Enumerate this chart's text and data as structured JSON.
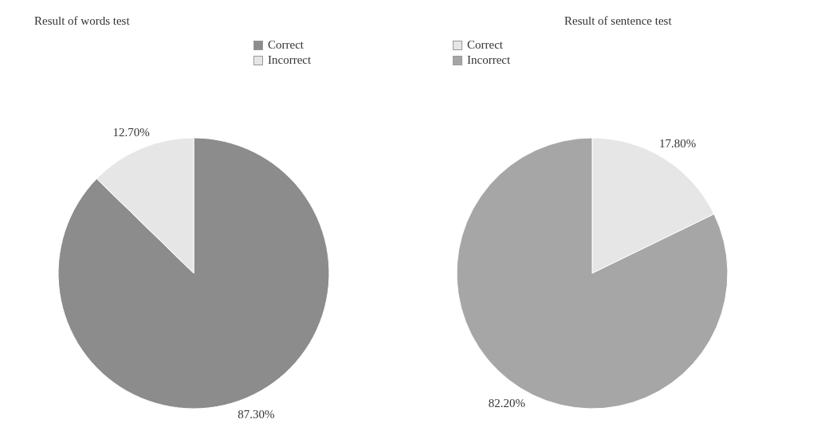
{
  "chart_data": [
    {
      "type": "pie",
      "title": "Result of words test",
      "categories": [
        "Correct",
        "Incorrect"
      ],
      "values": [
        87.3,
        12.7
      ],
      "value_labels": [
        "87.30%",
        "12.70%"
      ],
      "colors": [
        "#8c8c8c",
        "#e6e6e6"
      ],
      "legend": "top right"
    },
    {
      "type": "pie",
      "title": "Result of sentence test",
      "categories": [
        "Correct",
        "Incorrect"
      ],
      "values": [
        17.8,
        82.2
      ],
      "value_labels": [
        "17.80%",
        "82.20%"
      ],
      "colors": [
        "#e6e6e6",
        "#a6a6a6"
      ],
      "legend": "top left"
    }
  ]
}
